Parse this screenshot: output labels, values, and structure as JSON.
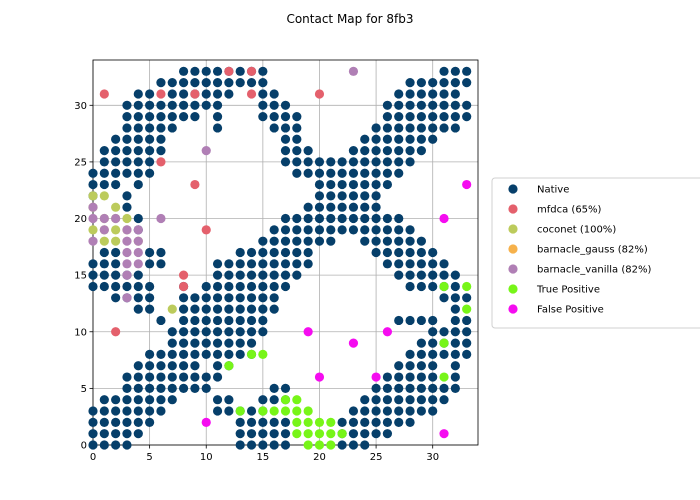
{
  "chart_data": {
    "type": "scatter",
    "title": "Contact Map for 8fb3",
    "xlabel": "",
    "ylabel": "",
    "xlim": [
      0,
      34
    ],
    "ylim": [
      0,
      34
    ],
    "x_ticks": [
      0,
      5,
      10,
      15,
      20,
      25,
      30
    ],
    "y_ticks": [
      0,
      5,
      10,
      15,
      20,
      25,
      30
    ],
    "grid": true,
    "legend_position": "right",
    "native_rows": [
      {
        "y": 33,
        "x": [
          8,
          9,
          10,
          11,
          12,
          13,
          14,
          15,
          31,
          32,
          33
        ]
      },
      {
        "y": 32,
        "x": [
          6,
          7,
          8,
          9,
          10,
          11,
          12,
          13,
          14,
          15,
          28,
          29,
          30,
          31,
          32,
          33
        ]
      },
      {
        "y": 31,
        "x": [
          4,
          5,
          7,
          8,
          9,
          10,
          11,
          12,
          15,
          16,
          27,
          28,
          29,
          30,
          31,
          32
        ]
      },
      {
        "y": 30,
        "x": [
          3,
          4,
          5,
          6,
          7,
          8,
          9,
          10,
          11,
          15,
          16,
          17,
          26,
          27,
          28,
          29,
          30,
          31,
          32,
          33
        ]
      },
      {
        "y": 29,
        "x": [
          3,
          4,
          5,
          6,
          7,
          8,
          9,
          11,
          15,
          16,
          17,
          18,
          26,
          27,
          28,
          29,
          30,
          31,
          32,
          33
        ]
      },
      {
        "y": 28,
        "x": [
          3,
          4,
          5,
          6,
          7,
          11,
          16,
          17,
          18,
          25,
          26,
          27,
          28,
          29,
          30,
          31,
          32
        ]
      },
      {
        "y": 27,
        "x": [
          2,
          3,
          4,
          5,
          6,
          17,
          18,
          24,
          25,
          26,
          27,
          28,
          29,
          30
        ]
      },
      {
        "y": 26,
        "x": [
          1,
          2,
          3,
          4,
          5,
          6,
          17,
          18,
          19,
          23,
          24,
          25,
          26,
          27,
          28,
          29
        ]
      },
      {
        "y": 25,
        "x": [
          1,
          2,
          3,
          4,
          5,
          17,
          18,
          19,
          20,
          21,
          22,
          23,
          24,
          25,
          26,
          27,
          28
        ]
      },
      {
        "y": 24,
        "x": [
          0,
          1,
          2,
          3,
          4,
          5,
          18,
          19,
          20,
          21,
          22,
          23,
          24,
          25,
          26,
          27
        ]
      },
      {
        "y": 23,
        "x": [
          0,
          1,
          2,
          4,
          20,
          21,
          22,
          23,
          24,
          25,
          26
        ]
      },
      {
        "y": 22,
        "x": [
          0,
          3,
          20,
          21,
          22,
          23,
          24,
          25
        ]
      },
      {
        "y": 21,
        "x": [
          3,
          19,
          20,
          21,
          22,
          23,
          24,
          25
        ]
      },
      {
        "y": 20,
        "x": [
          4,
          17,
          18,
          19,
          20,
          21,
          22,
          23,
          24,
          25,
          26,
          27
        ]
      },
      {
        "y": 19,
        "x": [
          4,
          16,
          17,
          18,
          19,
          20,
          21,
          22,
          23,
          24,
          25,
          26,
          27,
          28
        ]
      },
      {
        "y": 18,
        "x": [
          15,
          16,
          17,
          18,
          19,
          20,
          21,
          24,
          25,
          26,
          27,
          28,
          29
        ]
      },
      {
        "y": 17,
        "x": [
          1,
          2,
          5,
          6,
          13,
          14,
          15,
          16,
          17,
          18,
          19,
          25,
          26,
          27,
          28,
          29,
          30
        ]
      },
      {
        "y": 16,
        "x": [
          0,
          1,
          2,
          5,
          6,
          11,
          12,
          13,
          14,
          15,
          16,
          17,
          18,
          19,
          26,
          27,
          28,
          29,
          30,
          31
        ]
      },
      {
        "y": 15,
        "x": [
          0,
          1,
          2,
          3,
          4,
          11,
          12,
          13,
          14,
          15,
          16,
          17,
          18,
          27,
          28,
          29,
          30,
          31,
          32
        ]
      },
      {
        "y": 14,
        "x": [
          0,
          1,
          2,
          3,
          4,
          5,
          8,
          10,
          11,
          12,
          13,
          14,
          15,
          16,
          17,
          28,
          29,
          30,
          31,
          32
        ]
      },
      {
        "y": 13,
        "x": [
          2,
          3,
          4,
          5,
          8,
          9,
          10,
          11,
          12,
          13,
          14,
          15,
          16,
          31,
          32,
          33
        ]
      },
      {
        "y": 12,
        "x": [
          4,
          5,
          8,
          9,
          10,
          11,
          12,
          13,
          14,
          15,
          16,
          32
        ]
      },
      {
        "y": 11,
        "x": [
          6,
          8,
          9,
          10,
          11,
          12,
          13,
          14,
          15,
          27,
          28,
          29,
          30,
          32,
          33
        ]
      },
      {
        "y": 10,
        "x": [
          7,
          8,
          9,
          10,
          11,
          12,
          13,
          14,
          15,
          30,
          31,
          32,
          33
        ]
      },
      {
        "y": 9,
        "x": [
          7,
          8,
          9,
          10,
          11,
          12,
          13,
          14,
          29,
          30,
          31,
          32,
          33
        ]
      },
      {
        "y": 8,
        "x": [
          5,
          6,
          7,
          8,
          9,
          10,
          11,
          12,
          13,
          14,
          28,
          29,
          30,
          31,
          32,
          33
        ]
      },
      {
        "y": 7,
        "x": [
          4,
          5,
          6,
          7,
          8,
          9,
          11,
          12,
          27,
          28,
          29,
          30,
          32
        ]
      },
      {
        "y": 6,
        "x": [
          3,
          4,
          5,
          6,
          7,
          8,
          9,
          10,
          11,
          26,
          27,
          28,
          29,
          30,
          32
        ]
      },
      {
        "y": 5,
        "x": [
          3,
          4,
          5,
          6,
          7,
          8,
          9,
          10,
          16,
          17,
          25,
          26,
          27,
          28,
          29,
          30,
          31,
          32
        ]
      },
      {
        "y": 4,
        "x": [
          1,
          2,
          3,
          4,
          5,
          6,
          7,
          11,
          12,
          15,
          16,
          17,
          24,
          25,
          26,
          27,
          28,
          29,
          30,
          31
        ]
      },
      {
        "y": 3,
        "x": [
          0,
          1,
          2,
          3,
          4,
          5,
          6,
          11,
          12,
          13,
          14,
          15,
          23,
          24,
          25,
          26,
          27,
          28,
          29,
          30
        ]
      },
      {
        "y": 2,
        "x": [
          0,
          1,
          2,
          3,
          4,
          5,
          13,
          14,
          15,
          16,
          17,
          22,
          23,
          24,
          25,
          26,
          27,
          28
        ]
      },
      {
        "y": 1,
        "x": [
          0,
          1,
          2,
          3,
          4,
          13,
          14,
          15,
          16,
          17,
          22,
          23,
          24,
          25,
          26
        ]
      },
      {
        "y": 0,
        "x": [
          0,
          1,
          2,
          3,
          13,
          14,
          15,
          16,
          17,
          22,
          23,
          24
        ]
      }
    ],
    "series": [
      {
        "name": "mfdca (65%)",
        "color": "#e4606c",
        "points": [
          [
            1,
            31
          ],
          [
            6,
            31
          ],
          [
            9,
            31
          ],
          [
            12,
            33
          ],
          [
            14,
            33
          ],
          [
            14,
            31
          ],
          [
            20,
            31
          ],
          [
            6,
            25
          ],
          [
            9,
            23
          ],
          [
            10,
            19
          ],
          [
            8,
            15
          ],
          [
            8,
            14
          ],
          [
            2,
            10
          ]
        ]
      },
      {
        "name": "coconet (100%)",
        "color": "#bccb5c",
        "points": [
          [
            0,
            22
          ],
          [
            1,
            22
          ],
          [
            0,
            21
          ],
          [
            2,
            21
          ],
          [
            1,
            20
          ],
          [
            2,
            20
          ],
          [
            3,
            20
          ],
          [
            0,
            19
          ],
          [
            1,
            19
          ],
          [
            2,
            19
          ],
          [
            3,
            19
          ],
          [
            1,
            18
          ],
          [
            2,
            18
          ],
          [
            4,
            18
          ],
          [
            7,
            12
          ]
        ]
      },
      {
        "name": "barnacle_gauss (82%)",
        "color": "#f6b14b",
        "points": []
      },
      {
        "name": "barnacle_vanilla (82%)",
        "color": "#b07fb5",
        "points": [
          [
            23,
            33
          ],
          [
            10,
            26
          ],
          [
            0,
            21
          ],
          [
            0,
            20
          ],
          [
            1,
            20
          ],
          [
            2,
            20
          ],
          [
            6,
            20
          ],
          [
            1,
            19
          ],
          [
            3,
            19
          ],
          [
            4,
            19
          ],
          [
            0,
            18
          ],
          [
            3,
            18
          ],
          [
            4,
            18
          ],
          [
            3,
            17
          ],
          [
            4,
            17
          ],
          [
            3,
            16
          ],
          [
            4,
            16
          ],
          [
            3,
            15
          ],
          [
            3,
            13
          ]
        ]
      },
      {
        "name": "True Positive",
        "color": "#77f518",
        "points": [
          [
            12,
            7
          ],
          [
            14,
            8
          ],
          [
            15,
            8
          ],
          [
            13,
            3
          ],
          [
            15,
            3
          ],
          [
            16,
            3
          ],
          [
            17,
            3
          ],
          [
            17,
            4
          ],
          [
            18,
            4
          ],
          [
            18,
            3
          ],
          [
            19,
            3
          ],
          [
            18,
            2
          ],
          [
            19,
            2
          ],
          [
            20,
            2
          ],
          [
            21,
            2
          ],
          [
            18,
            1
          ],
          [
            19,
            1
          ],
          [
            20,
            1
          ],
          [
            21,
            1
          ],
          [
            22,
            1
          ],
          [
            19,
            0
          ],
          [
            20,
            0
          ],
          [
            21,
            0
          ],
          [
            31,
            14
          ],
          [
            33,
            14
          ],
          [
            33,
            12
          ],
          [
            31,
            9
          ],
          [
            31,
            6
          ]
        ]
      },
      {
        "name": "False Positive",
        "color": "#f50cf0",
        "points": [
          [
            33,
            23
          ],
          [
            31,
            20
          ],
          [
            19,
            10
          ],
          [
            26,
            10
          ],
          [
            23,
            9
          ],
          [
            20,
            6
          ],
          [
            25,
            6
          ],
          [
            10,
            2
          ],
          [
            31,
            1
          ]
        ]
      }
    ],
    "native": {
      "name": "Native",
      "color": "#063f6a"
    }
  }
}
